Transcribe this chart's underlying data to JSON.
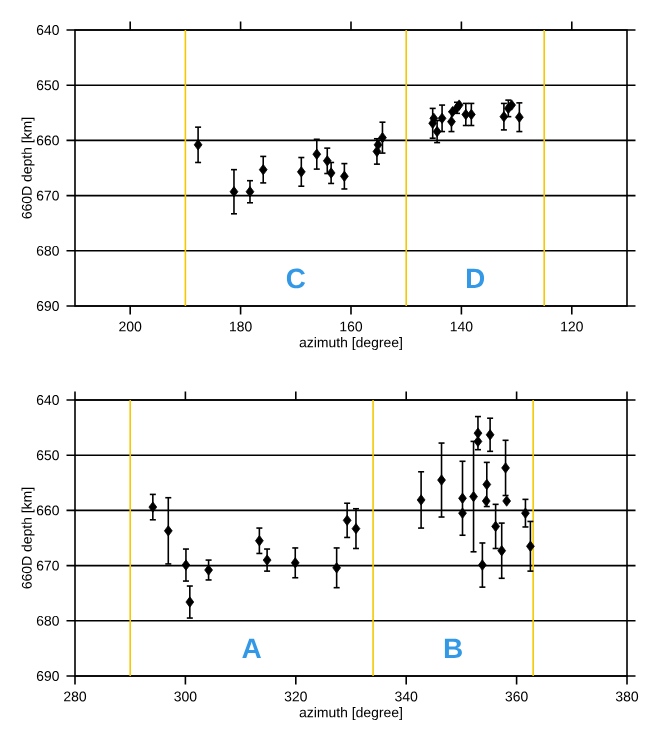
{
  "chart_data": [
    {
      "type": "scatter",
      "xlabel": "azimuth [degree]",
      "ylabel": "660D depth [km]",
      "xlim": [
        210,
        110
      ],
      "ylim": [
        690,
        640
      ],
      "xticks": [
        200,
        180,
        160,
        140,
        120
      ],
      "yticks": [
        640,
        650,
        660,
        670,
        680,
        690
      ],
      "grid": "y",
      "marker": "diamond",
      "ref_lines": [
        {
          "axis": "x",
          "value": 190,
          "color": "#f5c800"
        },
        {
          "axis": "x",
          "value": 150,
          "color": "#f5c800"
        },
        {
          "axis": "x",
          "value": 125,
          "color": "#f5c800"
        }
      ],
      "annotations": [
        "C",
        "D"
      ],
      "series": [
        {
          "color": "#000000",
          "x": [
            187.7,
            181.2,
            178.3,
            175.9,
            169,
            166.2,
            164.3,
            163.6,
            161.2,
            155.3,
            155.1,
            154.3,
            145.2,
            145,
            144.4,
            143.5,
            141.8,
            141.6,
            140.8,
            140.4,
            139.2,
            138.2,
            132.3,
            131.5,
            130.9,
            129.5
          ],
          "values": [
            660.8,
            669.3,
            669.3,
            665.3,
            665.7,
            662.5,
            663.7,
            665.9,
            666.5,
            662,
            660.8,
            659.5,
            656.9,
            656,
            658.4,
            656,
            656.6,
            654.8,
            654.1,
            653.6,
            655.3,
            655.3,
            655.7,
            654.2,
            653.6,
            655.8
          ],
          "errors": [
            3.2,
            4,
            2,
            2.4,
            2.6,
            2.7,
            2.3,
            1.9,
            2.3,
            2.3,
            null,
            2.8,
            2.7,
            null,
            2,
            2.4,
            1.8,
            null,
            1,
            null,
            2,
            2,
            2.4,
            1.5,
            null,
            2.6
          ]
        }
      ]
    },
    {
      "type": "scatter",
      "xlabel": "azimuth [degree]",
      "ylabel": "660D depth [km]",
      "xlim": [
        280,
        380
      ],
      "ylim": [
        690,
        640
      ],
      "xticks": [
        280,
        300,
        320,
        340,
        360,
        380
      ],
      "yticks": [
        640,
        650,
        660,
        670,
        680,
        690
      ],
      "grid": "y",
      "marker": "diamond",
      "ref_lines": [
        {
          "axis": "x",
          "value": 290,
          "color": "#f5c800"
        },
        {
          "axis": "x",
          "value": 334,
          "color": "#f5c800"
        },
        {
          "axis": "x",
          "value": 363,
          "color": "#f5c800"
        }
      ],
      "annotations": [
        "A",
        "B"
      ],
      "series": [
        {
          "color": "#000000",
          "x": [
            294.1,
            296.9,
            300.1,
            300.8,
            304.2,
            313.4,
            314.8,
            319.9,
            327.4,
            329.3,
            330.9,
            342.7,
            346.4,
            350.2,
            350.2,
            352.2,
            353,
            353,
            354.6,
            354.5,
            353.8,
            356.2,
            355.2,
            358,
            358.2,
            357.3,
            361.6,
            362.5
          ],
          "values": [
            659.4,
            663.7,
            669.9,
            676.6,
            670.8,
            665.5,
            669,
            669.5,
            670.4,
            661.8,
            663.3,
            658.1,
            654.5,
            657.8,
            660.5,
            657.5,
            646,
            647.5,
            655.3,
            658.3,
            669.9,
            662.9,
            646.3,
            652.3,
            658.3,
            667.3,
            660.5,
            666.5
          ],
          "errors": [
            2.3,
            6,
            2.9,
            2.9,
            1.8,
            2.3,
            2,
            2.7,
            3.6,
            3.1,
            3.6,
            5.1,
            6.7,
            6.7,
            null,
            10,
            3,
            null,
            4,
            null,
            4,
            4,
            3,
            5,
            null,
            5,
            2.5,
            4.5
          ]
        }
      ]
    }
  ]
}
